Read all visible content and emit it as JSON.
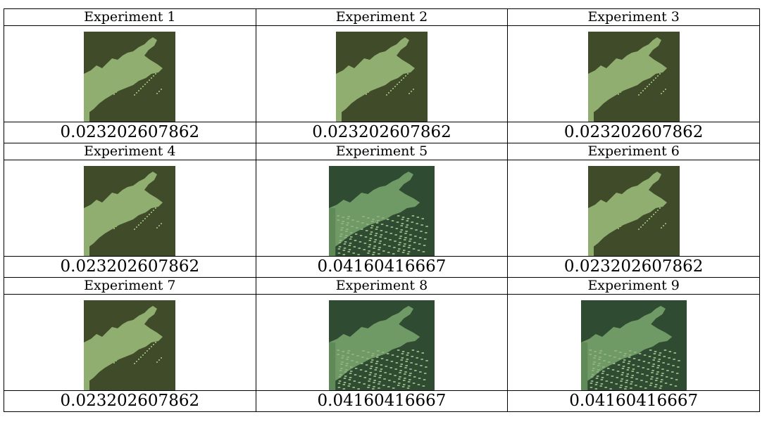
{
  "table": {
    "cells": [
      {
        "label": "Experiment 1",
        "value": "0.023202607862"
      },
      {
        "label": "Experiment 2",
        "value": "0.023202607862"
      },
      {
        "label": "Experiment 3",
        "value": "0.023202607862"
      },
      {
        "label": "Experiment 4",
        "value": "0.023202607862"
      },
      {
        "label": "Experiment 5",
        "value": "0.04160416667"
      },
      {
        "label": "Experiment 6",
        "value": "0.023202607862"
      },
      {
        "label": "Experiment 7",
        "value": "0.023202607862"
      },
      {
        "label": "Experiment 8",
        "value": "0.04160416667"
      },
      {
        "label": "Experiment 9",
        "value": "0.04160416667"
      }
    ]
  }
}
